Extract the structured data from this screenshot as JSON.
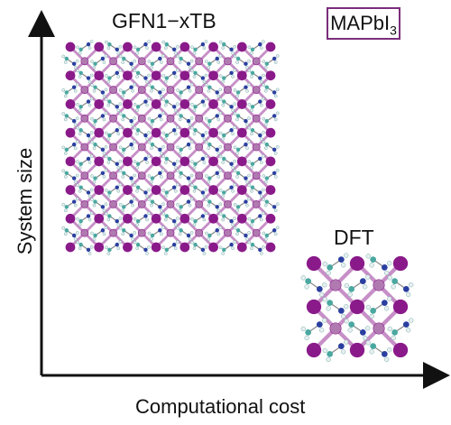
{
  "labels": {
    "large_model": "GFN1−xTB",
    "small_model": "DFT",
    "material_prefix": "MAPbI",
    "material_subscript": "3",
    "y_axis": "System size",
    "x_axis": "Computational cost"
  },
  "crystals": {
    "large": {
      "grid_cells": 7
    },
    "small": {
      "grid_cells": 2
    }
  },
  "colors": {
    "iodine": "#8a1a8a",
    "lead": "#b07ab0",
    "bond": "#c78fc7",
    "carbon": "#4aa8a0",
    "nitrogen": "#2a3fa0",
    "hydrogen": "#e8f0f0",
    "badge_border": "#7b2d7b",
    "axis": "#111111"
  }
}
